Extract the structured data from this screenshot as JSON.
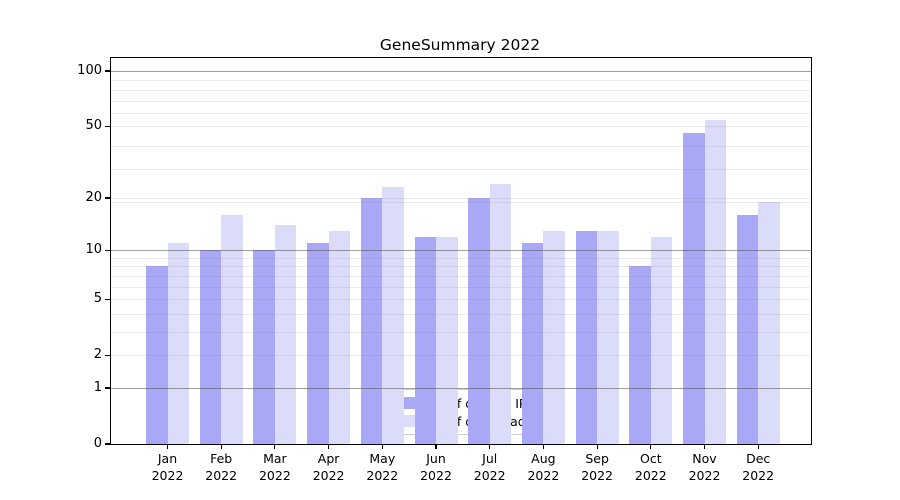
{
  "title": "GeneSummary 2022",
  "chart_data": {
    "type": "bar",
    "title": "GeneSummary 2022",
    "categories": [
      "Jan 2022",
      "Feb 2022",
      "Mar 2022",
      "Apr 2022",
      "May 2022",
      "Jun 2022",
      "Jul 2022",
      "Aug 2022",
      "Sep 2022",
      "Oct 2022",
      "Nov 2022",
      "Dec 2022"
    ],
    "series": [
      {
        "name": "Nb of distinct IPs",
        "color": "#a8a8f6",
        "values": [
          8,
          10,
          10,
          11,
          20,
          12,
          20,
          11,
          13,
          8,
          46,
          16
        ]
      },
      {
        "name": "Nb of downloads",
        "color": "#dbdbfa",
        "values": [
          11,
          16,
          14,
          13,
          23,
          12,
          24,
          13,
          13,
          12,
          54,
          19
        ]
      }
    ],
    "xlabel": "",
    "ylabel": "",
    "y_scale": "log1p",
    "ylim": [
      0,
      117
    ],
    "y_ticks": [
      0,
      1,
      2,
      5,
      10,
      20,
      50,
      100
    ],
    "major_gridlines": [
      1,
      10,
      100
    ],
    "minor_gridlines": [
      2,
      3,
      4,
      5,
      6,
      7,
      8,
      9,
      19,
      20,
      29,
      39,
      50,
      59,
      69,
      79,
      89
    ],
    "grid": "on",
    "legend_position": "lower center"
  },
  "legend": {
    "items": [
      {
        "label": "Nb of distinct IPs",
        "color": "#a8a8f6"
      },
      {
        "label": "Nb of downloads",
        "color": "#dbdbfa"
      }
    ]
  }
}
